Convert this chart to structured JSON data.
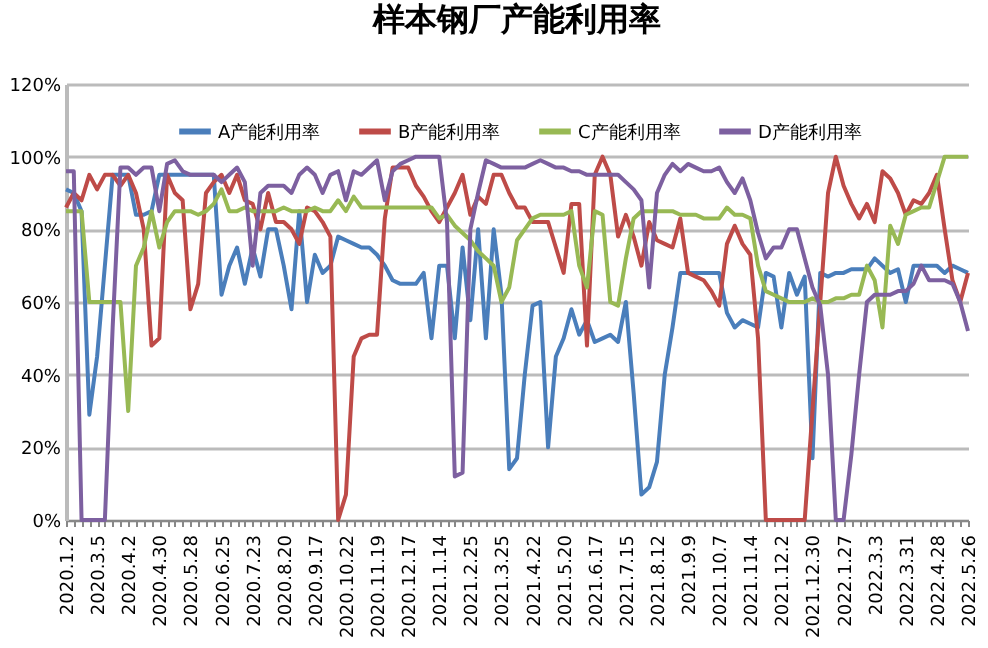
{
  "chart_data": {
    "type": "line",
    "title": "样本钢厂产能利用率",
    "categories": [
      "2020.1.2",
      null,
      null,
      null,
      "2020.3.5",
      null,
      null,
      null,
      "2020.4.2",
      null,
      null,
      null,
      "2020.4.30",
      null,
      null,
      null,
      "2020.5.28",
      null,
      null,
      null,
      "2020.6.25",
      null,
      null,
      null,
      "2020.7.23",
      null,
      null,
      null,
      "2020.8.20",
      null,
      null,
      null,
      "2020.9.17",
      null,
      null,
      null,
      "2020.10.22",
      null,
      null,
      null,
      "2020.11.19",
      null,
      null,
      null,
      "2020.12.17",
      null,
      null,
      null,
      "2021.1.14",
      null,
      null,
      null,
      "2021.2.25",
      null,
      null,
      null,
      "2021.3.25",
      null,
      null,
      null,
      "2021.4.22",
      null,
      null,
      null,
      "2021.5.20",
      null,
      null,
      null,
      "2021.6.17",
      null,
      null,
      null,
      "2021.7.15",
      null,
      null,
      null,
      "2021.8.12",
      null,
      null,
      null,
      "2021.9.9",
      null,
      null,
      null,
      "2021.10.7",
      null,
      null,
      null,
      "2021.11.4",
      null,
      null,
      null,
      "2021.12.2",
      null,
      null,
      null,
      "2021.12.30",
      null,
      null,
      null,
      "2022.1.27",
      null,
      null,
      null,
      "2022.3.3",
      null,
      null,
      null,
      "2022.3.31",
      null,
      null,
      null,
      "2022.4.28",
      null,
      null,
      null,
      "2022.5.26"
    ],
    "series": [
      {
        "name": "A产能利用率",
        "color": "#4a7ebb",
        "values": [
          91,
          90,
          85,
          29,
          45,
          70,
          95,
          95,
          95,
          84,
          84,
          85,
          95,
          95,
          95,
          95,
          95,
          95,
          95,
          95,
          62,
          70,
          75,
          65,
          75,
          67,
          80,
          80,
          70,
          58,
          85,
          60,
          73,
          68,
          70,
          78,
          77,
          76,
          75,
          75,
          73,
          70,
          66,
          65,
          65,
          65,
          68,
          50,
          70,
          70,
          50,
          75,
          55,
          80,
          50,
          80,
          62,
          14,
          17,
          40,
          59,
          60,
          20,
          45,
          50,
          58,
          51,
          55,
          49,
          50,
          51,
          49,
          60,
          35,
          7,
          9,
          16,
          40,
          53,
          68,
          68,
          68,
          68,
          68,
          68,
          57,
          53,
          55,
          54,
          53,
          68,
          67,
          53,
          68,
          62,
          67,
          17,
          68,
          67,
          68,
          68,
          69,
          69,
          69,
          72,
          70,
          68,
          69,
          60,
          70,
          70,
          70,
          70,
          68,
          70,
          69,
          68
        ]
      },
      {
        "name": "B产能利用率",
        "color": "#be4b48",
        "values": [
          86,
          90,
          88,
          95,
          91,
          95,
          95,
          92,
          95,
          90,
          80,
          48,
          50,
          95,
          90,
          88,
          58,
          65,
          90,
          93,
          95,
          90,
          95,
          88,
          87,
          80,
          90,
          82,
          82,
          80,
          76,
          86,
          85,
          82,
          78,
          0,
          7,
          45,
          50,
          51,
          51,
          83,
          97,
          97,
          97,
          92,
          89,
          85,
          82,
          86,
          90,
          95,
          84,
          89,
          87,
          95,
          95,
          90,
          86,
          86,
          82,
          82,
          82,
          75,
          68,
          87,
          87,
          48,
          95,
          100,
          95,
          78,
          84,
          78,
          70,
          82,
          77,
          76,
          75,
          83,
          68,
          67,
          66,
          63,
          59,
          76,
          81,
          76,
          73,
          50,
          0,
          0,
          0,
          0,
          0,
          0,
          30,
          60,
          90,
          100,
          92,
          87,
          83,
          87,
          82,
          96,
          94,
          90,
          84,
          88,
          87,
          90,
          95,
          80,
          66,
          60,
          68
        ]
      },
      {
        "name": "C产能利用率",
        "color": "#98b954",
        "values": [
          85,
          85,
          85,
          60,
          60,
          60,
          60,
          60,
          30,
          70,
          75,
          85,
          75,
          82,
          85,
          85,
          85,
          84,
          85,
          87,
          91,
          85,
          85,
          86,
          85,
          85,
          85,
          85,
          86,
          85,
          85,
          85,
          86,
          85,
          85,
          88,
          85,
          89,
          86,
          86,
          86,
          86,
          86,
          86,
          86,
          86,
          86,
          86,
          83,
          84,
          81,
          79,
          77,
          74,
          72,
          70,
          60,
          64,
          77,
          80,
          83,
          84,
          84,
          84,
          84,
          85,
          70,
          64,
          85,
          84,
          60,
          59,
          72,
          83,
          85,
          85,
          85,
          85,
          85,
          84,
          84,
          84,
          83,
          83,
          83,
          86,
          84,
          84,
          83,
          70,
          63,
          62,
          61,
          60,
          60,
          60,
          61,
          60,
          60,
          61,
          61,
          62,
          62,
          70,
          66,
          53,
          81,
          76,
          84,
          85,
          86,
          86,
          93,
          100,
          100,
          100,
          100
        ]
      },
      {
        "name": "D产能利用率",
        "color": "#7d60a0",
        "values": [
          96,
          96,
          0,
          0,
          0,
          0,
          53,
          97,
          97,
          95,
          97,
          97,
          85,
          98,
          99,
          96,
          95,
          95,
          95,
          95,
          93,
          95,
          97,
          93,
          70,
          90,
          92,
          92,
          92,
          90,
          95,
          97,
          95,
          90,
          95,
          96,
          88,
          96,
          95,
          97,
          99,
          88,
          96,
          98,
          99,
          100,
          100,
          100,
          100,
          82,
          12,
          13,
          80,
          90,
          99,
          98,
          97,
          97,
          97,
          97,
          98,
          99,
          98,
          97,
          97,
          96,
          96,
          95,
          95,
          95,
          95,
          95,
          93,
          91,
          88,
          64,
          90,
          95,
          98,
          96,
          98,
          97,
          96,
          96,
          97,
          93,
          90,
          94,
          88,
          79,
          72,
          75,
          75,
          80,
          80,
          72,
          64,
          59,
          40,
          0,
          0,
          18,
          40,
          60,
          62,
          62,
          62,
          63,
          63,
          65,
          70,
          66,
          66,
          66,
          65,
          60,
          52
        ]
      }
    ],
    "ylim": [
      0,
      120
    ],
    "yticks": [
      {
        "value": 0,
        "label": "0%"
      },
      {
        "value": 20,
        "label": "20%"
      },
      {
        "value": 40,
        "label": "40%"
      },
      {
        "value": 60,
        "label": "60%"
      },
      {
        "value": 80,
        "label": "80%"
      },
      {
        "value": 100,
        "label": "100%"
      },
      {
        "value": 120,
        "label": "120%"
      }
    ],
    "grid": "y",
    "legend": "top"
  }
}
